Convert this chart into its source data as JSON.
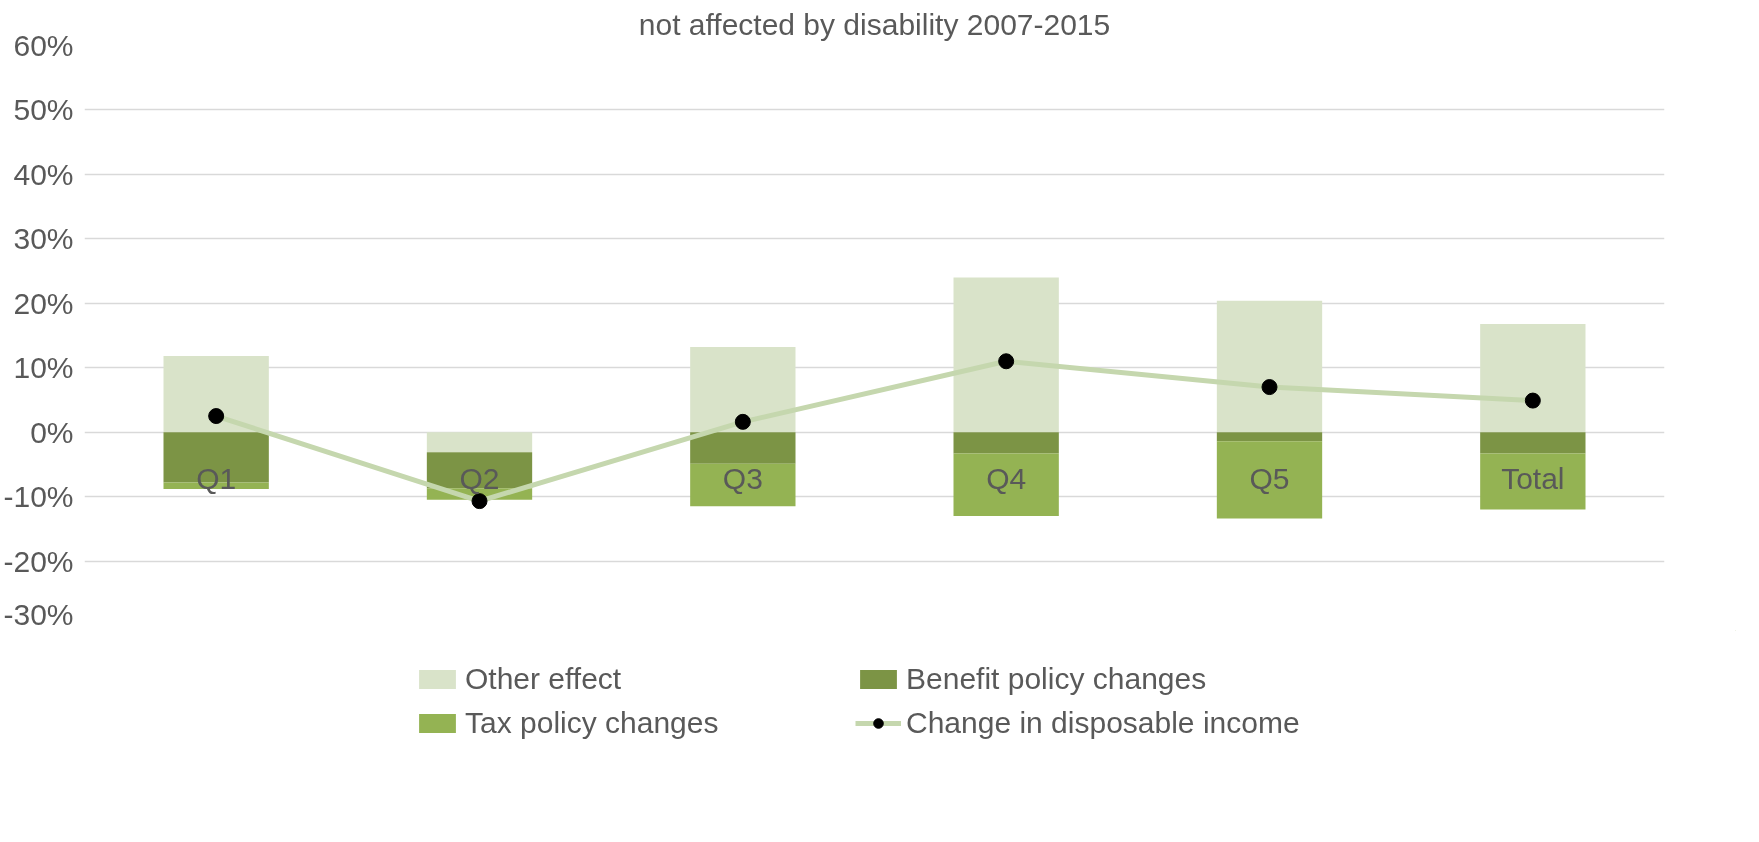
{
  "chart_data": {
    "type": "bar",
    "stacked": true,
    "title": "not affected by disability 2007-2015",
    "categories": [
      "Q1",
      "Q2",
      "Q3",
      "Q4",
      "Q5",
      "Total"
    ],
    "series": [
      {
        "name": "Other effect",
        "color": "#d9e3c9",
        "values": [
          11.8,
          -3.1,
          13.2,
          24.0,
          20.4,
          16.8
        ]
      },
      {
        "name": "Benefit policy changes",
        "color": "#7c9445",
        "values": [
          -7.8,
          -5.6,
          -4.9,
          -3.3,
          -1.4,
          -3.3
        ]
      },
      {
        "name": "Tax policy changes",
        "color": "#94b353",
        "values": [
          -1.0,
          -1.8,
          -6.6,
          -9.7,
          -12.0,
          -8.7
        ]
      },
      {
        "name": "Change in disposable income",
        "type": "line",
        "color": "#c5d7ae",
        "marker": "circle",
        "values": [
          2.5,
          -10.7,
          1.6,
          11.0,
          7.0,
          4.9
        ]
      }
    ],
    "ylim": [
      -30,
      60
    ],
    "yticks": [
      {
        "value": -30,
        "label": "-30%"
      },
      {
        "value": -20,
        "label": "-20%"
      },
      {
        "value": -10,
        "label": "-10%"
      },
      {
        "value": 0,
        "label": "0%"
      },
      {
        "value": 10,
        "label": "10%"
      },
      {
        "value": 20,
        "label": "20%"
      },
      {
        "value": 30,
        "label": "30%"
      },
      {
        "value": 40,
        "label": "40%"
      },
      {
        "value": 50,
        "label": "50%"
      },
      {
        "value": 60,
        "label": "60%"
      }
    ],
    "grid": "y",
    "legend": "bottom"
  }
}
